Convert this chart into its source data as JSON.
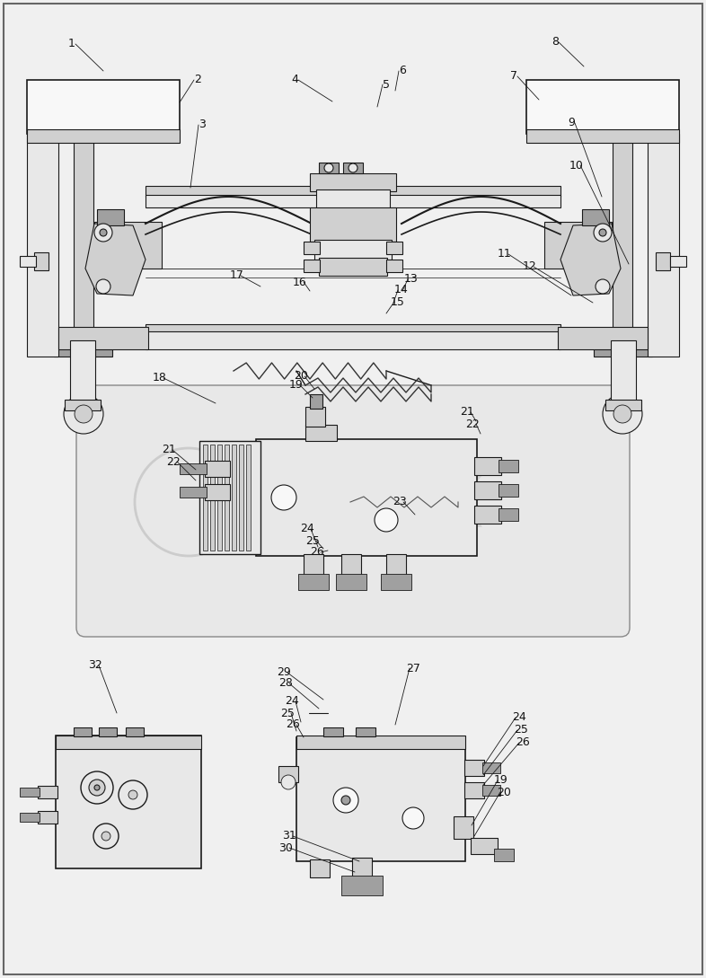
{
  "title": "",
  "bg_color": "#f0f0f0",
  "line_color": "#1a1a1a",
  "fill_light": "#e8e8e8",
  "fill_mid": "#d0d0d0",
  "fill_dark": "#a0a0a0",
  "fill_white": "#f8f8f8",
  "text_color": "#111111",
  "fig_width": 7.86,
  "fig_height": 10.89,
  "dpi": 100
}
